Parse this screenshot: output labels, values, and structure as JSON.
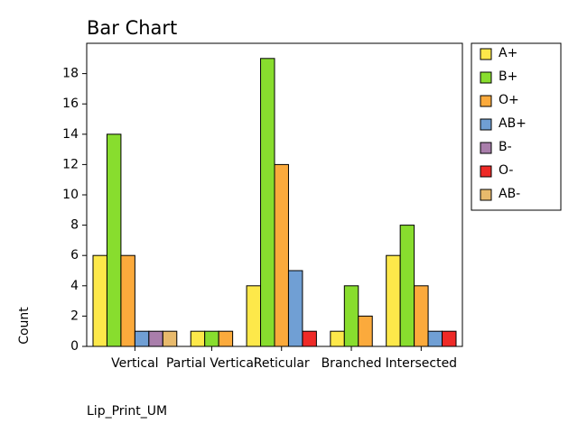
{
  "chart_data": {
    "type": "bar",
    "title": "Bar Chart",
    "x_label": "Lip_Print_UM",
    "y_label": "Count",
    "categories": [
      "Vertical",
      "Partial Vertical",
      "Reticular",
      "Branched",
      "Intersected"
    ],
    "series": [
      {
        "name": "A+",
        "color": "#fde84a",
        "values": [
          6,
          1,
          4,
          1,
          6
        ]
      },
      {
        "name": "B+",
        "color": "#88dd2e",
        "values": [
          14,
          1,
          19,
          4,
          8
        ]
      },
      {
        "name": "O+",
        "color": "#fbaa3c",
        "values": [
          6,
          1,
          12,
          2,
          4
        ]
      },
      {
        "name": "AB+",
        "color": "#709fd4",
        "values": [
          1,
          null,
          5,
          null,
          1
        ]
      },
      {
        "name": "B-",
        "color": "#a97eab",
        "values": [
          1,
          null,
          null,
          null,
          null
        ]
      },
      {
        "name": "O-",
        "color": "#ee2a27",
        "values": [
          null,
          null,
          1,
          null,
          1
        ]
      },
      {
        "name": "AB-",
        "color": "#e8ba6c",
        "values": [
          1,
          null,
          null,
          null,
          null
        ]
      }
    ],
    "ylim": [
      0,
      20
    ],
    "yticks": [
      0,
      2,
      4,
      6,
      8,
      10,
      12,
      14,
      16,
      18
    ],
    "legend": "right"
  }
}
